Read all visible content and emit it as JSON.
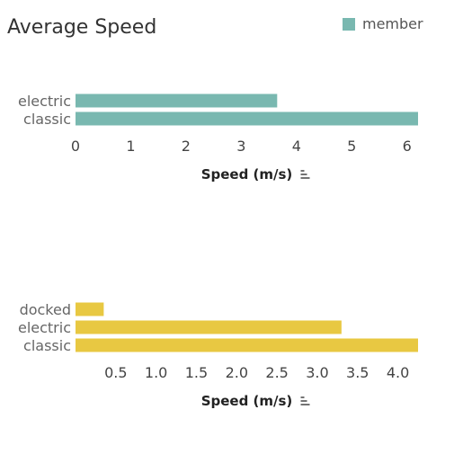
{
  "title": "Average Speed",
  "legend": {
    "label": "member",
    "color": "#79B8B0"
  },
  "sort_icon": "sort-descending-icon",
  "chart_data": [
    {
      "type": "bar",
      "orientation": "horizontal",
      "categories": [
        "electric",
        "classic"
      ],
      "values": [
        3.65,
        6.2
      ],
      "xlabel": "Speed (m/s)",
      "xlim": [
        0,
        6.2
      ],
      "ticks": [
        0,
        1,
        2,
        3,
        4,
        5,
        6
      ],
      "tick_labels": [
        "0",
        "1",
        "2",
        "3",
        "4",
        "5",
        "6"
      ],
      "color": "#79B8B0",
      "grid": false
    },
    {
      "type": "bar",
      "orientation": "horizontal",
      "categories": [
        "docked",
        "electric",
        "classic"
      ],
      "values": [
        0.35,
        3.3,
        4.25
      ],
      "xlabel": "Speed (m/s)",
      "xlim": [
        0,
        4.25
      ],
      "ticks": [
        0.5,
        1.0,
        1.5,
        2.0,
        2.5,
        3.0,
        3.5,
        4.0
      ],
      "tick_labels": [
        "0.5",
        "1.0",
        "1.5",
        "2.0",
        "2.5",
        "3.0",
        "3.5",
        "4.0"
      ],
      "color": "#E8C842",
      "grid": false
    }
  ]
}
